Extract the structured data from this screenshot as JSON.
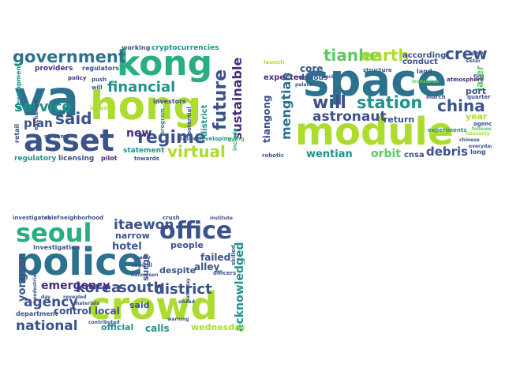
{
  "palette": {
    "viridis": [
      "#440154",
      "#472d7b",
      "#3b528b",
      "#2c728e",
      "#21918c",
      "#28ae80",
      "#5ec962",
      "#addc30",
      "#d8e219"
    ]
  },
  "clouds": [
    {
      "words": [
        {
          "text": "hong",
          "color": "#addc30"
        },
        {
          "text": "va",
          "color": "#2c728e"
        },
        {
          "text": "kong",
          "color": "#28ae80"
        },
        {
          "text": "asset",
          "color": "#3b528b"
        },
        {
          "text": "government",
          "color": "#2c728e"
        },
        {
          "text": "financial",
          "color": "#21918c"
        },
        {
          "text": "future",
          "color": "#3b528b"
        },
        {
          "text": "regime",
          "color": "#3b528b"
        },
        {
          "text": "virtual",
          "color": "#addc30"
        },
        {
          "text": "sustainable",
          "color": "#472d7b"
        },
        {
          "text": "service",
          "color": "#21918c"
        },
        {
          "text": "said",
          "color": "#3b528b"
        },
        {
          "text": "plan",
          "color": "#3b528b"
        },
        {
          "text": "new",
          "color": "#472d7b"
        },
        {
          "text": "district",
          "color": "#21918c"
        },
        {
          "text": "cryptocurrencies",
          "color": "#21918c"
        },
        {
          "text": "working",
          "color": "#3b528b"
        },
        {
          "text": "providers",
          "color": "#472d7b"
        },
        {
          "text": "regulators",
          "color": "#3b528b"
        },
        {
          "text": "development",
          "color": "#21918c"
        },
        {
          "text": "investors",
          "color": "#3b528b"
        },
        {
          "text": "statement",
          "color": "#21918c"
        },
        {
          "text": "regulatory",
          "color": "#21918c"
        },
        {
          "text": "licensing",
          "color": "#3b528b"
        },
        {
          "text": "retail",
          "color": "#3b528b"
        },
        {
          "text": "industry",
          "color": "#addc30"
        },
        {
          "text": "policy",
          "color": "#472d7b"
        },
        {
          "text": "stream",
          "color": "#3b528b"
        },
        {
          "text": "value",
          "color": "#3b528b"
        },
        {
          "text": "developing",
          "color": "#21918c"
        },
        {
          "text": "trying",
          "color": "#5ec962"
        },
        {
          "text": "potential",
          "color": "#3b528b"
        },
        {
          "text": "towards",
          "color": "#3b528b"
        },
        {
          "text": "push",
          "color": "#3b528b"
        },
        {
          "text": "will",
          "color": "#3b528b"
        },
        {
          "text": "program",
          "color": "#21918c"
        },
        {
          "text": "exchange",
          "color": "#3b528b"
        },
        {
          "text": "pilot",
          "color": "#472d7b"
        },
        {
          "text": "include",
          "color": "#28ae80"
        }
      ]
    },
    {
      "words": [
        {
          "text": "space",
          "color": "#2c728e"
        },
        {
          "text": "module",
          "color": "#addc30"
        },
        {
          "text": "tianhe",
          "color": "#5ec962"
        },
        {
          "text": "earth",
          "color": "#addc30"
        },
        {
          "text": "crew",
          "color": "#3b528b"
        },
        {
          "text": "station",
          "color": "#21918c"
        },
        {
          "text": "will",
          "color": "#3b528b"
        },
        {
          "text": "astronaut",
          "color": "#3b528b"
        },
        {
          "text": "china",
          "color": "#3b528b"
        },
        {
          "text": "mengtian",
          "color": "#2c728e"
        },
        {
          "text": "tiangong",
          "color": "#3b528b"
        },
        {
          "text": "wentian",
          "color": "#21918c"
        },
        {
          "text": "orbit",
          "color": "#5ec962"
        },
        {
          "text": "cnsa",
          "color": "#3b528b"
        },
        {
          "text": "debris",
          "color": "#3b528b"
        },
        {
          "text": "core",
          "color": "#3b528b"
        },
        {
          "text": "expected",
          "color": "#472d7b"
        },
        {
          "text": "various",
          "color": "#3b528b"
        },
        {
          "text": "according",
          "color": "#3b528b"
        },
        {
          "text": "conduct",
          "color": "#3b528b"
        },
        {
          "text": "later",
          "color": "#5ec962"
        },
        {
          "text": "port",
          "color": "#3b528b"
        },
        {
          "text": "year",
          "color": "#addc30"
        },
        {
          "text": "return",
          "color": "#3b528b"
        },
        {
          "text": "structure",
          "color": "#3b528b"
        },
        {
          "text": "land",
          "color": "#3b528b"
        },
        {
          "text": "atmosphere",
          "color": "#472d7b"
        },
        {
          "text": "march",
          "color": "#3b528b"
        },
        {
          "text": "agency",
          "color": "#3b528b"
        },
        {
          "text": "experiments",
          "color": "#21918c"
        },
        {
          "text": "quarter",
          "color": "#3b528b"
        },
        {
          "text": "long",
          "color": "#3b528b"
        },
        {
          "text": "robotic",
          "color": "#3b528b"
        },
        {
          "text": "palace",
          "color": "#3b528b"
        },
        {
          "text": "dock",
          "color": "#3b528b"
        },
        {
          "text": "first",
          "color": "#3b528b"
        },
        {
          "text": "chinese",
          "color": "#3b528b"
        },
        {
          "text": "everyday",
          "color": "#3b528b"
        },
        {
          "text": "launch",
          "color": "#addc30"
        },
        {
          "text": "translates",
          "color": "#5ec962"
        },
        {
          "text": "heavenly",
          "color": "#addc30"
        },
        {
          "text": "sister",
          "color": "#3b528b"
        },
        {
          "text": "point",
          "color": "#3b528b"
        },
        {
          "text": "followed",
          "color": "#5ec962"
        }
      ]
    },
    {
      "words": [
        {
          "text": "police",
          "color": "#2c728e"
        },
        {
          "text": "crowd",
          "color": "#addc30"
        },
        {
          "text": "seoul",
          "color": "#28ae80"
        },
        {
          "text": "office",
          "color": "#3b528b"
        },
        {
          "text": "itaewon",
          "color": "#3b528b"
        },
        {
          "text": "korea",
          "color": "#3b528b"
        },
        {
          "text": "south",
          "color": "#3b528b"
        },
        {
          "text": "district",
          "color": "#3b528b"
        },
        {
          "text": "agency",
          "color": "#3b528b"
        },
        {
          "text": "national",
          "color": "#3b528b"
        },
        {
          "text": "emergency",
          "color": "#472d7b"
        },
        {
          "text": "yongsan",
          "color": "#3b528b"
        },
        {
          "text": "acknowledged",
          "color": "#21918c"
        },
        {
          "text": "wednesday",
          "color": "#addc30"
        },
        {
          "text": "calls",
          "color": "#21918c"
        },
        {
          "text": "official",
          "color": "#21918c"
        },
        {
          "text": "control",
          "color": "#3b528b"
        },
        {
          "text": "local",
          "color": "#3b528b"
        },
        {
          "text": "said",
          "color": "#3b528b"
        },
        {
          "text": "alley",
          "color": "#3b528b"
        },
        {
          "text": "surge",
          "color": "#3b528b"
        },
        {
          "text": "despite",
          "color": "#3b528b"
        },
        {
          "text": "hotel",
          "color": "#3b528b"
        },
        {
          "text": "narrow",
          "color": "#3b528b"
        },
        {
          "text": "failed",
          "color": "#3b528b"
        },
        {
          "text": "people",
          "color": "#3b528b"
        },
        {
          "text": "investigation",
          "color": "#3b528b"
        },
        {
          "text": "investigates",
          "color": "#3b528b"
        },
        {
          "text": "chief",
          "color": "#3b528b"
        },
        {
          "text": "neighborhood",
          "color": "#3b528b"
        },
        {
          "text": "department",
          "color": "#3b528b"
        },
        {
          "text": "skilled",
          "color": "#3b528b"
        },
        {
          "text": "officers",
          "color": "#3b528b"
        },
        {
          "text": "halloween",
          "color": "#3b528b"
        },
        {
          "text": "deadly",
          "color": "#3b528b"
        },
        {
          "text": "capital",
          "color": "#3b528b"
        },
        {
          "text": "crush",
          "color": "#3b528b"
        },
        {
          "text": "institute",
          "color": "#3b528b"
        },
        {
          "text": "warning",
          "color": "#3b528b"
        },
        {
          "text": "ahead",
          "color": "#3b528b"
        },
        {
          "text": "saturday",
          "color": "#3b528b"
        },
        {
          "text": "materials",
          "color": "#3b528b"
        },
        {
          "text": "day",
          "color": "#3b528b"
        },
        {
          "text": "contributed",
          "color": "#3b528b"
        },
        {
          "text": "revealed",
          "color": "#3b528b"
        },
        {
          "text": "pedestrians",
          "color": "#3b528b"
        }
      ]
    }
  ]
}
